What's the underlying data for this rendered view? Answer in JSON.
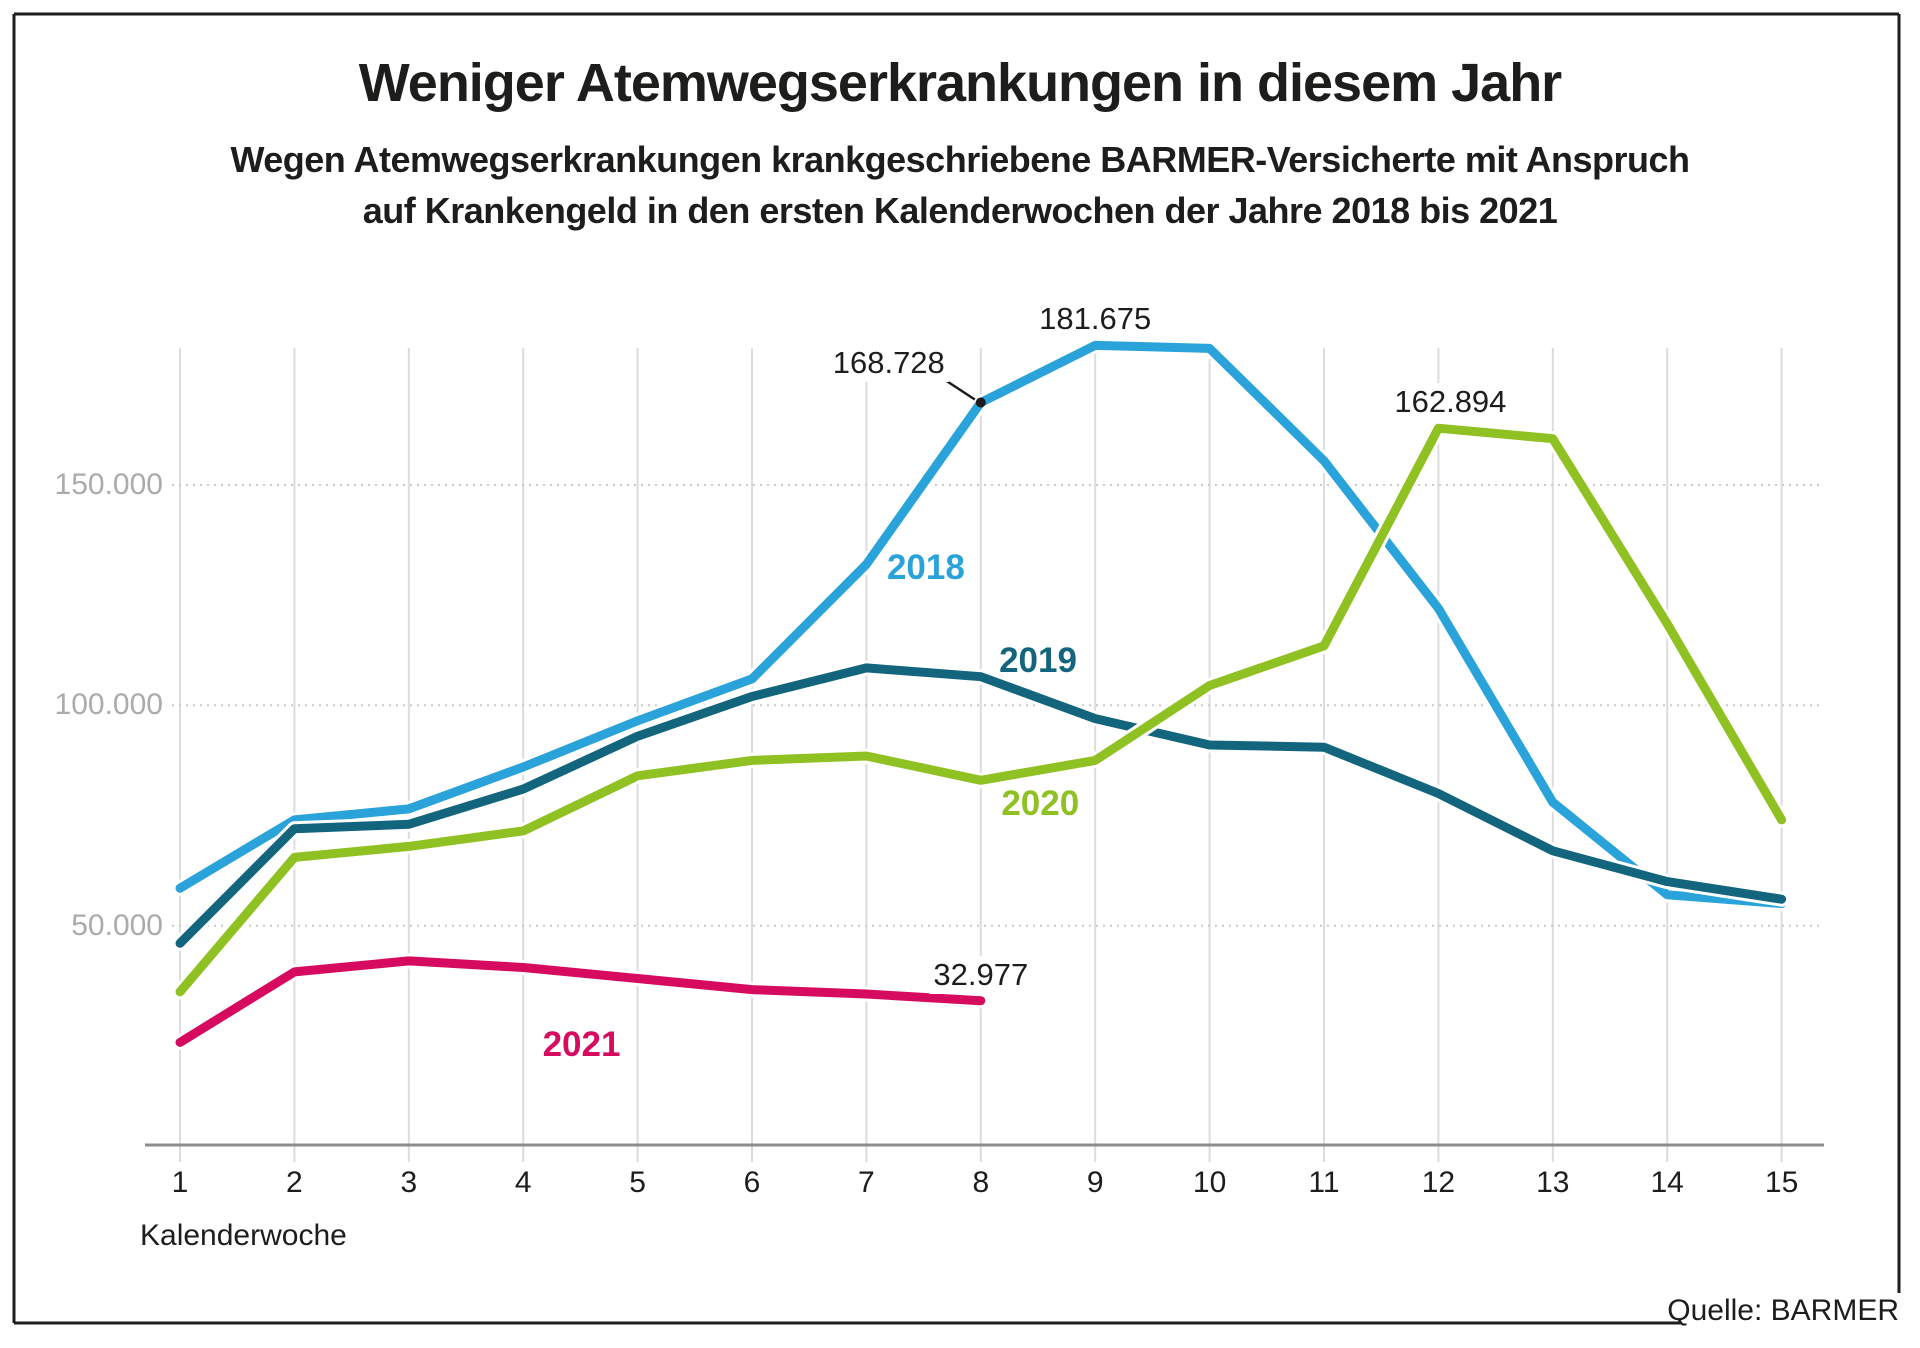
{
  "title": "Weniger Atemwegserkrankungen in diesem Jahr",
  "subtitle_lines": [
    "Wegen Atemwegserkrankungen krankgeschriebene BARMER-Versicherte mit Anspruch",
    "auf Krankengeld in den ersten Kalenderwochen der Jahre 2018 bis 2021"
  ],
  "source": "Quelle: BARMER",
  "x_axis_title": "Kalenderwoche",
  "colors": {
    "2018": "#29a3d9",
    "2019": "#12657c",
    "2020": "#8fc122",
    "2021": "#d60b5f",
    "text": "#1d1d1b",
    "tick_gray": "#ababab",
    "grid_vertical": "#dcdcdc",
    "grid_dotted": "#c9c9c9",
    "axis": "#8c8c8c",
    "frame": "#1d1d1b"
  },
  "chart_data": {
    "type": "line",
    "title": "Weniger Atemwegserkrankungen in diesem Jahr",
    "xlabel": "Kalenderwoche",
    "ylabel": "",
    "ylim": [
      0,
      200000
    ],
    "grid": "horizontal-dotted and vertical-light",
    "legend_position": "inline-labels-on-lines",
    "categories": [
      "1",
      "2",
      "3",
      "4",
      "5",
      "6",
      "7",
      "8",
      "9",
      "10",
      "11",
      "12",
      "13",
      "14",
      "15"
    ],
    "y_ticks": [
      {
        "label": "150.000",
        "value": 150000
      },
      {
        "label": "100.000",
        "value": 100000
      },
      {
        "label": "50.000",
        "value": 50000
      }
    ],
    "series": [
      {
        "name": "2018",
        "color": "#29a3d9",
        "values": [
          58500,
          74000,
          76500,
          86000,
          96500,
          106000,
          132000,
          168728,
          181675,
          181000,
          155500,
          122000,
          78000,
          57000,
          55000
        ]
      },
      {
        "name": "2019",
        "color": "#12657c",
        "values": [
          46000,
          72000,
          73000,
          81000,
          93000,
          102000,
          108500,
          106500,
          97000,
          91000,
          90500,
          80000,
          67000,
          60000,
          56000
        ]
      },
      {
        "name": "2020",
        "color": "#8fc122",
        "values": [
          35000,
          65500,
          68000,
          71500,
          84000,
          87500,
          88500,
          83000,
          87500,
          104500,
          113500,
          162894,
          160500,
          118500,
          74000
        ]
      },
      {
        "name": "2021",
        "color": "#d60b5f",
        "values": [
          23500,
          39500,
          42000,
          40500,
          38000,
          35500,
          34500,
          32977
        ]
      }
    ],
    "annotations": [
      {
        "label": "168.728",
        "series": "2018",
        "week": 8,
        "value": 168728,
        "style": "leader"
      },
      {
        "label": "181.675",
        "series": "2018",
        "week": 9,
        "value": 181675,
        "style": "above"
      },
      {
        "label": "162.894",
        "series": "2020",
        "week": 12,
        "value": 162894,
        "style": "above",
        "dx": 12
      },
      {
        "label": "32.977",
        "series": "2021",
        "week": 8,
        "value": 32977,
        "style": "above"
      }
    ],
    "series_labels": [
      {
        "text": "2018",
        "color": "#29a3d9",
        "week": 7.52,
        "value": 131200
      },
      {
        "text": "2019",
        "color": "#12657c",
        "week": 8.5,
        "value": 110100
      },
      {
        "text": "2020",
        "color": "#8fc122",
        "week": 8.52,
        "value": 77600
      },
      {
        "text": "2021",
        "color": "#d60b5f",
        "week": 4.51,
        "value": 22950
      }
    ]
  }
}
